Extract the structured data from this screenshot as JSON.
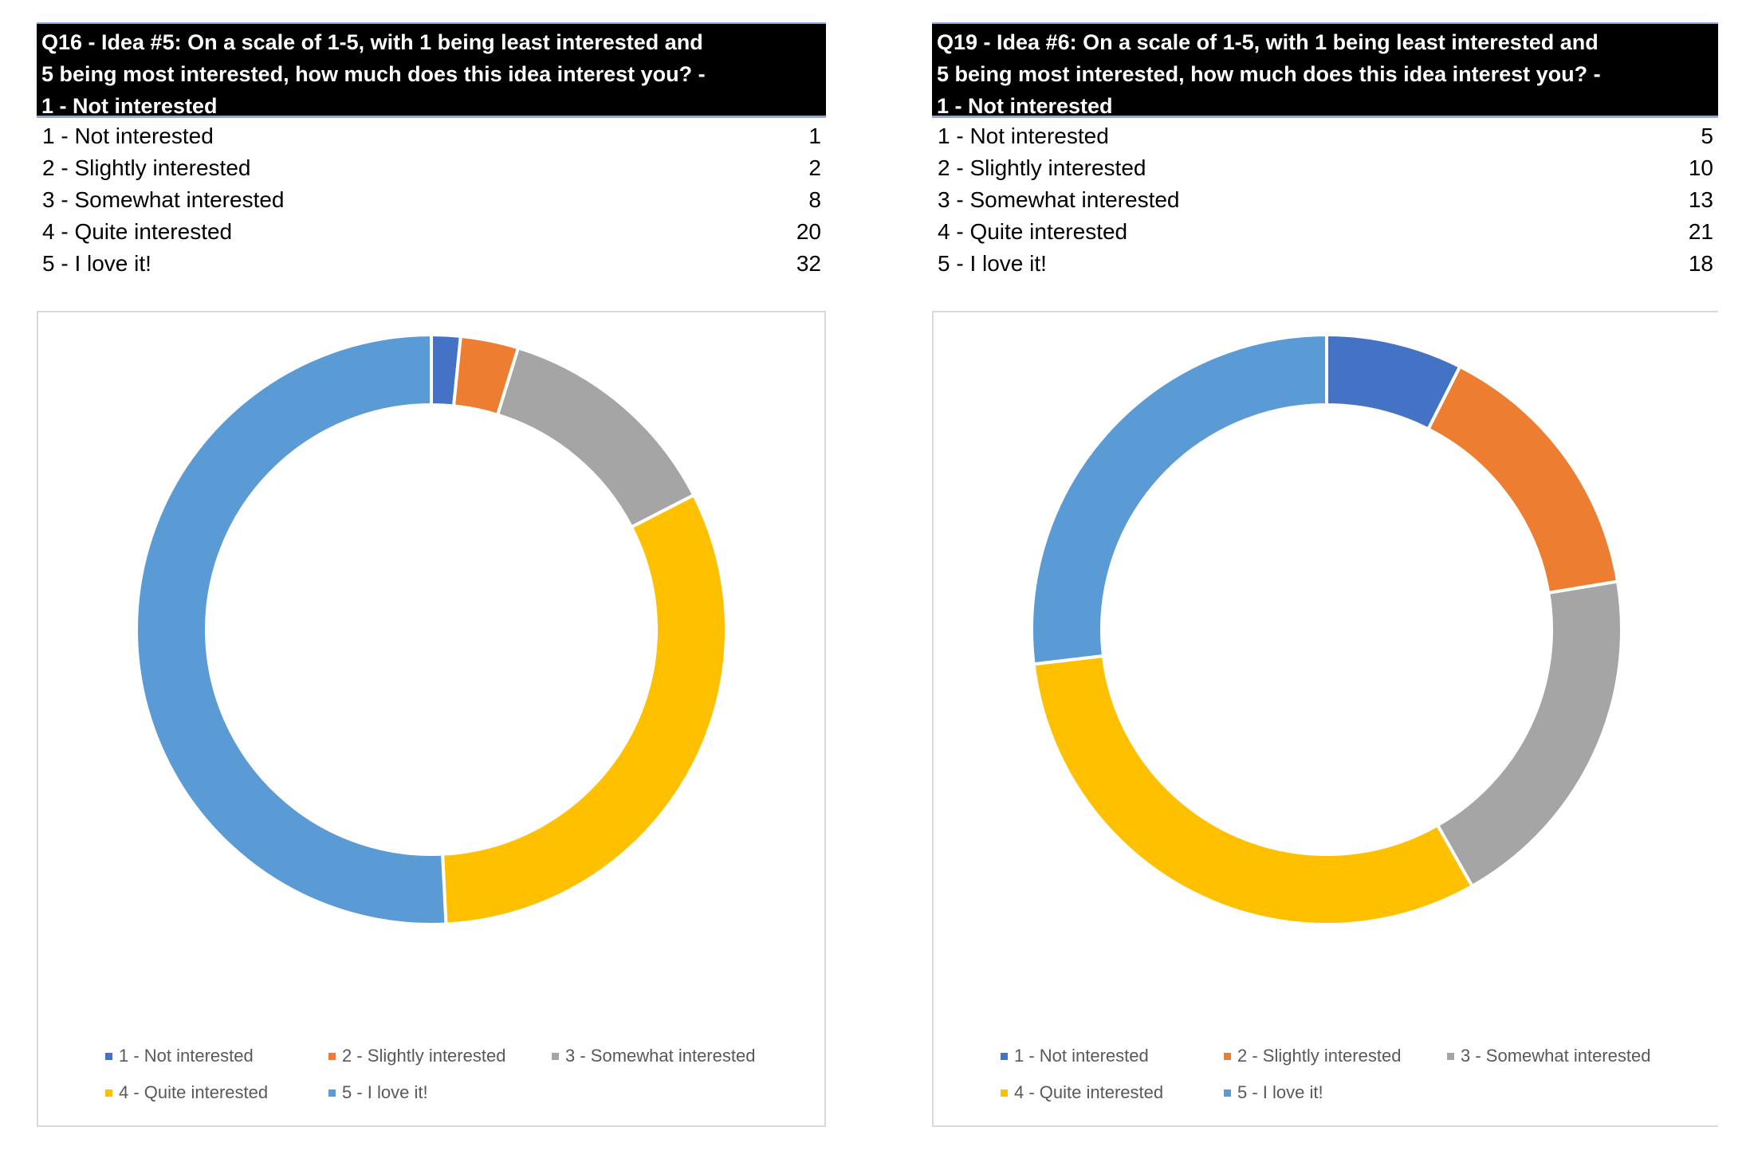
{
  "colors": {
    "cat1": "#4472c4",
    "cat2": "#ed7d31",
    "cat3": "#a5a5a5",
    "cat4": "#ffc000",
    "cat5": "#5b9bd5"
  },
  "left": {
    "question_lines": [
      "Q16 - Idea #5: On a scale of 1-5, with 1 being least interested and",
      "5 being most interested, how much does this idea interest you? -",
      "1 - Not interested"
    ],
    "rows": [
      {
        "label": "1 - Not interested",
        "value": "1"
      },
      {
        "label": "2 - Slightly interested",
        "value": "2"
      },
      {
        "label": "3 - Somewhat interested",
        "value": "8"
      },
      {
        "label": "4 - Quite interested",
        "value": "20"
      },
      {
        "label": "5 - I love it!",
        "value": "32"
      }
    ]
  },
  "right": {
    "question_lines": [
      "Q19 - Idea #6: On a scale of 1-5, with 1 being least interested and",
      "5 being most interested, how much does this idea interest you? -",
      "1 - Not interested"
    ],
    "rows": [
      {
        "label": "1 - Not interested",
        "value": "5"
      },
      {
        "label": "2 - Slightly interested",
        "value": "10"
      },
      {
        "label": "3 - Somewhat interested",
        "value": "13"
      },
      {
        "label": "4 - Quite interested",
        "value": "21"
      },
      {
        "label": "5 - I love it!",
        "value": "18"
      }
    ]
  },
  "chart_data": [
    {
      "type": "pie",
      "variant": "donut",
      "title": "",
      "categories": [
        "1 - Not interested",
        "2 - Slightly interested",
        "3 - Somewhat interested",
        "4 - Quite interested",
        "5 - I love it!"
      ],
      "values": [
        1,
        2,
        8,
        20,
        32
      ],
      "legend": "bottom"
    },
    {
      "type": "pie",
      "variant": "donut",
      "title": "",
      "categories": [
        "1 - Not interested",
        "2 - Slightly interested",
        "3 - Somewhat interested",
        "4 - Quite interested",
        "5 - I love it!"
      ],
      "values": [
        5,
        10,
        13,
        21,
        18
      ],
      "legend": "bottom"
    }
  ]
}
